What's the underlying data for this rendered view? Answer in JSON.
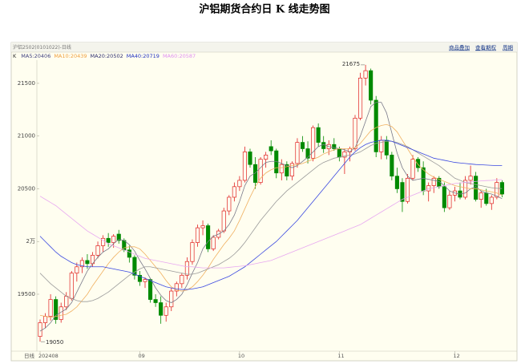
{
  "chart_data": {
    "type": "candlestick",
    "title": "沪铝期货合约日 K 线走势图",
    "header_label": "沪铝2502(0101022)-日线",
    "legend_prefix": "K",
    "period_label": "日线",
    "links": [
      "商品叠加",
      "查看期权",
      "周期"
    ],
    "categories": [
      "202408",
      null,
      null,
      null,
      null,
      null,
      null,
      null,
      null,
      null,
      null,
      null,
      null,
      null,
      null,
      null,
      null,
      null,
      null,
      "09",
      null,
      null,
      null,
      null,
      null,
      null,
      null,
      null,
      null,
      null,
      null,
      null,
      null,
      null,
      null,
      null,
      null,
      null,
      "10",
      null,
      null,
      null,
      null,
      null,
      null,
      null,
      null,
      null,
      null,
      null,
      null,
      null,
      null,
      null,
      null,
      null,
      null,
      "11",
      null,
      null,
      null,
      null,
      null,
      null,
      null,
      null,
      null,
      null,
      null,
      null,
      null,
      null,
      null,
      null,
      null,
      null,
      null,
      null,
      null,
      "12",
      null,
      null,
      null,
      null,
      null,
      null,
      null,
      null,
      null
    ],
    "open": [
      19100,
      19230,
      19290,
      19450,
      19260,
      19380,
      19460,
      19700,
      19760,
      19820,
      19790,
      19870,
      19960,
      20030,
      19990,
      20070,
      20010,
      19920,
      19850,
      19680,
      19620,
      19640,
      19450,
      19420,
      19300,
      19380,
      19530,
      19600,
      19680,
      19810,
      19990,
      20130,
      20150,
      19930,
      20040,
      20100,
      20290,
      20420,
      20520,
      20580,
      20850,
      20730,
      20560,
      20780,
      20900,
      20860,
      20650,
      20730,
      20620,
      20740,
      20940,
      20880,
      20790,
      21080,
      20940,
      20880,
      20920,
      20880,
      20800,
      20850,
      20880,
      21170,
      21550,
      21620,
      21340,
      20850,
      20960,
      20820,
      20620,
      20560,
      20380,
      20600,
      20780,
      20700,
      20480,
      20530,
      20600,
      20520,
      20320,
      20440,
      20480,
      20420,
      20580,
      20620,
      20400,
      20460,
      20360,
      20420,
      20560
    ],
    "high": [
      19260,
      19320,
      19500,
      19480,
      19420,
      19520,
      19720,
      19800,
      19850,
      19880,
      19900,
      20000,
      20060,
      20080,
      20070,
      20110,
      20030,
      19960,
      19870,
      19720,
      19660,
      19650,
      19500,
      19480,
      19420,
      19560,
      19620,
      19700,
      19850,
      20020,
      20160,
      20200,
      20170,
      20060,
      20120,
      20320,
      20440,
      20560,
      20620,
      20900,
      20880,
      20800,
      20800,
      20850,
      20960,
      20880,
      20780,
      20760,
      20760,
      20980,
      21000,
      20950,
      21100,
      21120,
      21000,
      20960,
      20980,
      20900,
      20880,
      20900,
      21200,
      21600,
      21675,
      21640,
      21380,
      21000,
      21000,
      20850,
      20700,
      20600,
      20640,
      20820,
      20800,
      20760,
      20560,
      20620,
      20620,
      20560,
      20480,
      20520,
      20560,
      20620,
      20720,
      20660,
      20480,
      20500,
      20440,
      20600,
      20580
    ],
    "low": [
      19050,
      19180,
      19250,
      19220,
      19230,
      19350,
      19440,
      19620,
      19700,
      19740,
      19760,
      19840,
      19900,
      19950,
      19940,
      19980,
      19900,
      19800,
      19640,
      19580,
      19560,
      19420,
      19380,
      19220,
      19240,
      19340,
      19480,
      19560,
      19640,
      19780,
      19950,
      20060,
      19900,
      19910,
      20020,
      20080,
      20250,
      20380,
      20480,
      20560,
      20700,
      20500,
      20540,
      20700,
      20820,
      20600,
      20580,
      20580,
      20580,
      20700,
      20850,
      20740,
      20760,
      20900,
      20840,
      20820,
      20860,
      20760,
      20640,
      20760,
      20860,
      21150,
      21480,
      21300,
      20800,
      20780,
      20780,
      20580,
      20460,
      20280,
      20360,
      20580,
      20660,
      20440,
      20380,
      20460,
      20500,
      20280,
      20300,
      20380,
      20400,
      20400,
      20540,
      20380,
      20320,
      20340,
      20300,
      20400,
      20420
    ],
    "close": [
      19230,
      19290,
      19450,
      19260,
      19380,
      19480,
      19700,
      19760,
      19820,
      19790,
      19870,
      19960,
      20030,
      19990,
      20050,
      20010,
      19920,
      19850,
      19680,
      19620,
      19640,
      19450,
      19420,
      19300,
      19380,
      19530,
      19600,
      19680,
      19810,
      19990,
      20130,
      20150,
      19930,
      20040,
      20100,
      20290,
      20420,
      20520,
      20580,
      20850,
      20730,
      20560,
      20780,
      20820,
      20860,
      20650,
      20730,
      20620,
      20740,
      20940,
      20880,
      20790,
      21080,
      20940,
      20880,
      20920,
      20880,
      20800,
      20850,
      20880,
      21170,
      21550,
      21620,
      21340,
      20850,
      20960,
      20820,
      20620,
      20500,
      20380,
      20600,
      20780,
      20700,
      20480,
      20530,
      20600,
      20520,
      20320,
      20440,
      20480,
      20420,
      20580,
      20620,
      20400,
      20460,
      20360,
      20420,
      20560,
      20450
    ],
    "up_color": "#e02020",
    "down_color": "#008a00",
    "series": [
      {
        "name": "MA5:20406",
        "color": "#404080",
        "line_color": "#7a7a8a",
        "values": [
          19150,
          19180,
          19230,
          19300,
          19330,
          19360,
          19420,
          19520,
          19620,
          19720,
          19790,
          19850,
          19900,
          19930,
          19980,
          20020,
          20010,
          19970,
          19910,
          19820,
          19740,
          19650,
          19560,
          19490,
          19440,
          19420,
          19450,
          19500,
          19590,
          19700,
          19800,
          19930,
          20000,
          20050,
          20070,
          20100,
          20160,
          20250,
          20380,
          20530,
          20620,
          20650,
          20700,
          20750,
          20760,
          20760,
          20740,
          20720,
          20700,
          20720,
          20760,
          20800,
          20850,
          20900,
          20920,
          20900,
          20890,
          20880,
          20870,
          20850,
          20890,
          21000,
          21140,
          21280,
          21320,
          21320,
          21220,
          21030,
          20840,
          20700,
          20620,
          20580,
          20590,
          20600,
          20590,
          20580,
          20570,
          20530,
          20480,
          20460,
          20450,
          20460,
          20500,
          20520,
          20480,
          20460,
          20450,
          20430,
          20406
        ]
      },
      {
        "name": "MA10:20439",
        "color": "#f0a040",
        "line_color": "#f0b060",
        "values": [
          19300,
          19290,
          19280,
          19290,
          19300,
          19310,
          19340,
          19380,
          19440,
          19500,
          19580,
          19650,
          19720,
          19790,
          19850,
          19900,
          19940,
          19950,
          19950,
          19930,
          19880,
          19820,
          19760,
          19700,
          19630,
          19570,
          19540,
          19530,
          19540,
          19570,
          19620,
          19680,
          19750,
          19830,
          19900,
          19970,
          20030,
          20100,
          20200,
          20310,
          20420,
          20520,
          20600,
          20650,
          20680,
          20700,
          20700,
          20710,
          20720,
          20730,
          20740,
          20760,
          20780,
          20800,
          20830,
          20850,
          20870,
          20880,
          20880,
          20880,
          20890,
          20930,
          20990,
          21050,
          21080,
          21100,
          21110,
          21090,
          21040,
          20960,
          20880,
          20800,
          20730,
          20680,
          20640,
          20610,
          20590,
          20570,
          20550,
          20530,
          20520,
          20510,
          20500,
          20500,
          20490,
          20480,
          20470,
          20460,
          20439
        ]
      },
      {
        "name": "MA20:20502",
        "color": "#303070",
        "line_color": "#9a9a9a",
        "values": [
          19700,
          19650,
          19600,
          19560,
          19520,
          19480,
          19460,
          19440,
          19430,
          19430,
          19440,
          19460,
          19490,
          19520,
          19560,
          19600,
          19640,
          19680,
          19710,
          19740,
          19760,
          19760,
          19750,
          19740,
          19730,
          19720,
          19710,
          19700,
          19690,
          19690,
          19700,
          19720,
          19740,
          19760,
          19780,
          19810,
          19840,
          19880,
          19930,
          19990,
          20060,
          20130,
          20200,
          20260,
          20320,
          20380,
          20430,
          20480,
          20520,
          20560,
          20600,
          20640,
          20680,
          20720,
          20750,
          20770,
          20790,
          20800,
          20810,
          20820,
          20830,
          20850,
          20880,
          20910,
          20930,
          20940,
          20950,
          20950,
          20940,
          20920,
          20900,
          20870,
          20840,
          20810,
          20780,
          20750,
          20720,
          20680,
          20640,
          20600,
          20580,
          20560,
          20550,
          20540,
          20530,
          20520,
          20510,
          20505,
          20502
        ]
      },
      {
        "name": "MA40:20719",
        "color": "#2030c0",
        "line_color": "#3a48e0",
        "values": [
          20050,
          20000,
          19950,
          19900,
          19860,
          19830,
          19800,
          19780,
          19770,
          19760,
          19760,
          19760,
          19760,
          19750,
          19740,
          19730,
          19720,
          19710,
          19690,
          19670,
          19650,
          19630,
          19610,
          19590,
          19570,
          19560,
          19550,
          19545,
          19545,
          19550,
          19560,
          19570,
          19590,
          19610,
          19630,
          19650,
          19670,
          19700,
          19730,
          19760,
          19800,
          19840,
          19880,
          19920,
          19960,
          20000,
          20050,
          20100,
          20150,
          20200,
          20260,
          20320,
          20380,
          20440,
          20500,
          20560,
          20620,
          20680,
          20740,
          20800,
          20850,
          20890,
          20920,
          20940,
          20950,
          20960,
          20960,
          20950,
          20930,
          20910,
          20890,
          20870,
          20850,
          20830,
          20810,
          20790,
          20780,
          20770,
          20760,
          20750,
          20745,
          20740,
          20735,
          20730,
          20728,
          20725,
          20722,
          20720,
          20719
        ]
      },
      {
        "name": "MA60:20587",
        "color": "#e090f0",
        "line_color": "#e8a8f0",
        "values": [
          20430,
          20400,
          20370,
          20340,
          20300,
          20260,
          20220,
          20180,
          20140,
          20100,
          20070,
          20040,
          20010,
          19980,
          19960,
          19940,
          19920,
          19900,
          19880,
          19860,
          19840,
          19830,
          19820,
          19810,
          19800,
          19790,
          19780,
          19770,
          19760,
          19760,
          19755,
          19750,
          19750,
          19750,
          19750,
          19750,
          19755,
          19760,
          19765,
          19770,
          19780,
          19790,
          19800,
          19810,
          19820,
          19840,
          19860,
          19880,
          19900,
          19920,
          19940,
          19960,
          19980,
          20000,
          20020,
          20040,
          20060,
          20080,
          20100,
          20120,
          20140,
          20160,
          20190,
          20220,
          20250,
          20280,
          20310,
          20340,
          20370,
          20400,
          20420,
          20440,
          20460,
          20480,
          20500,
          20510,
          20520,
          20530,
          20540,
          20550,
          20555,
          20560,
          20565,
          20570,
          20575,
          20578,
          20580,
          20584,
          20587
        ]
      }
    ],
    "ylim": [
      18960,
      21720
    ],
    "yticks": [
      19500,
      {
        "value": 20000,
        "label": "2万"
      },
      20500,
      21000,
      21500
    ],
    "grid": false
  }
}
